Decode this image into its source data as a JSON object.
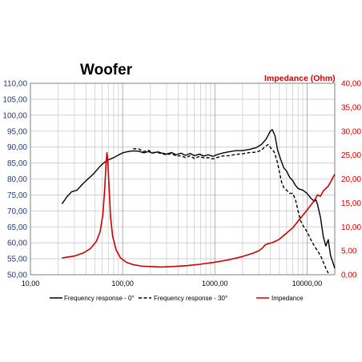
{
  "chart_data": {
    "type": "line",
    "title": "Woofer",
    "xlabel": "",
    "ylabel": "",
    "y2label": "Impedance (Ohm)",
    "xscale": "log",
    "xlim": [
      10,
      20000
    ],
    "ylim": [
      50,
      110
    ],
    "y2lim": [
      0,
      40
    ],
    "grid": true,
    "legend_placement": "bottom",
    "x_tick_values": [
      10,
      100,
      1000,
      10000
    ],
    "x_tick_labels": [
      "10,00",
      "100,00",
      "1000,00",
      "10000,00"
    ],
    "y_tick_values": [
      50,
      55,
      60,
      65,
      70,
      75,
      80,
      85,
      90,
      95,
      100,
      105,
      110
    ],
    "y_tick_labels": [
      "50,00",
      "55,00",
      "60,00",
      "65,00",
      "70,00",
      "75,00",
      "80,00",
      "85,00",
      "90,00",
      "95,00",
      "100,00",
      "105,00",
      "110,00"
    ],
    "y2_tick_values": [
      0,
      5,
      10,
      15,
      20,
      25,
      30,
      35,
      40
    ],
    "y2_tick_labels": [
      "0,00",
      "5,00",
      "10,00",
      "15,00",
      "20,00",
      "25,00",
      "30,00",
      "35,00",
      "40,00"
    ],
    "series": [
      {
        "name": "Frequency response - 0°",
        "axis": "left",
        "color": "#000000",
        "dash": "solid",
        "points": [
          [
            22,
            72.2
          ],
          [
            25,
            74.5
          ],
          [
            28,
            76
          ],
          [
            32,
            76.5
          ],
          [
            37,
            78.5
          ],
          [
            42,
            80
          ],
          [
            48,
            81.5
          ],
          [
            55,
            83.5
          ],
          [
            62,
            85
          ],
          [
            70,
            86
          ],
          [
            80,
            86.7
          ],
          [
            90,
            87.5
          ],
          [
            100,
            88.2
          ],
          [
            115,
            88.6
          ],
          [
            130,
            88.8
          ],
          [
            150,
            88.7
          ],
          [
            170,
            88.2
          ],
          [
            190,
            88.6
          ],
          [
            210,
            88.1
          ],
          [
            240,
            88.5
          ],
          [
            270,
            88.1
          ],
          [
            300,
            87.8
          ],
          [
            340,
            88.3
          ],
          [
            380,
            87.6
          ],
          [
            430,
            88.1
          ],
          [
            480,
            87.4
          ],
          [
            540,
            88
          ],
          [
            600,
            87.3
          ],
          [
            680,
            87.8
          ],
          [
            760,
            87.2
          ],
          [
            850,
            87.6
          ],
          [
            950,
            87.1
          ],
          [
            1050,
            87.6
          ],
          [
            1200,
            88.1
          ],
          [
            1400,
            88.5
          ],
          [
            1700,
            88.9
          ],
          [
            2000,
            88.9
          ],
          [
            2400,
            89.3
          ],
          [
            2800,
            89.8
          ],
          [
            3200,
            90.8
          ],
          [
            3600,
            92.5
          ],
          [
            4000,
            95
          ],
          [
            4200,
            95.5
          ],
          [
            4500,
            93.5
          ],
          [
            4800,
            89
          ],
          [
            5200,
            86
          ],
          [
            5600,
            83.5
          ],
          [
            6000,
            82.5
          ],
          [
            6500,
            80.5
          ],
          [
            7000,
            79.5
          ],
          [
            7500,
            78
          ],
          [
            8000,
            77
          ],
          [
            9000,
            76.5
          ],
          [
            10000,
            75.5
          ],
          [
            11000,
            74
          ],
          [
            12000,
            73
          ],
          [
            12500,
            73.5
          ],
          [
            13000,
            72
          ],
          [
            14000,
            68
          ],
          [
            15000,
            62
          ],
          [
            16000,
            59
          ],
          [
            17000,
            61
          ],
          [
            18000,
            56
          ],
          [
            19000,
            54
          ],
          [
            20000,
            52
          ]
        ]
      },
      {
        "name": "Frequency response - 30°",
        "axis": "left",
        "color": "#000000",
        "dash": "dashed",
        "points": [
          [
            130,
            89.5
          ],
          [
            150,
            89.4
          ],
          [
            170,
            88.6
          ],
          [
            190,
            89
          ],
          [
            210,
            88.3
          ],
          [
            240,
            88.3
          ],
          [
            270,
            87.9
          ],
          [
            300,
            87.6
          ],
          [
            340,
            88
          ],
          [
            380,
            87.2
          ],
          [
            430,
            87.3
          ],
          [
            480,
            86.7
          ],
          [
            540,
            87.3
          ],
          [
            600,
            86.4
          ],
          [
            680,
            87.1
          ],
          [
            760,
            86.6
          ],
          [
            850,
            86.7
          ],
          [
            950,
            86.3
          ],
          [
            1050,
            86.7
          ],
          [
            1200,
            87.2
          ],
          [
            1400,
            87.3
          ],
          [
            1700,
            87.7
          ],
          [
            2000,
            87.9
          ],
          [
            2400,
            88.3
          ],
          [
            2800,
            88.4
          ],
          [
            3200,
            89
          ],
          [
            3500,
            90.2
          ],
          [
            3800,
            90.8
          ],
          [
            4100,
            89.5
          ],
          [
            4400,
            88.5
          ],
          [
            4700,
            86
          ],
          [
            5000,
            82.5
          ],
          [
            5300,
            79
          ],
          [
            5600,
            77.3
          ],
          [
            6000,
            76.5
          ],
          [
            6500,
            75.5
          ],
          [
            7000,
            75.5
          ],
          [
            7500,
            73.5
          ],
          [
            8000,
            70
          ],
          [
            8500,
            67
          ],
          [
            9000,
            65.5
          ],
          [
            10000,
            63.5
          ],
          [
            11000,
            61
          ],
          [
            12000,
            59
          ],
          [
            13000,
            57.5
          ],
          [
            14000,
            56
          ],
          [
            15000,
            54
          ],
          [
            16000,
            52
          ],
          [
            17000,
            50.5
          ]
        ]
      },
      {
        "name": "Impedance",
        "axis": "right",
        "color": "#cc0000",
        "dash": "solid",
        "points": [
          [
            22,
            3.5
          ],
          [
            30,
            3.9
          ],
          [
            38,
            4.6
          ],
          [
            45,
            5.5
          ],
          [
            52,
            7
          ],
          [
            57,
            9
          ],
          [
            61,
            12.5
          ],
          [
            64,
            18
          ],
          [
            66,
            23
          ],
          [
            67.5,
            25.5
          ],
          [
            69,
            24
          ],
          [
            71,
            19
          ],
          [
            74,
            12
          ],
          [
            78,
            8
          ],
          [
            85,
            5.2
          ],
          [
            95,
            3.5
          ],
          [
            110,
            2.6
          ],
          [
            130,
            2.1
          ],
          [
            160,
            1.8
          ],
          [
            200,
            1.7
          ],
          [
            260,
            1.6
          ],
          [
            350,
            1.7
          ],
          [
            500,
            1.9
          ],
          [
            700,
            2.2
          ],
          [
            1000,
            2.6
          ],
          [
            1400,
            3.1
          ],
          [
            2000,
            3.8
          ],
          [
            2600,
            4.5
          ],
          [
            3000,
            5
          ],
          [
            3300,
            5.6
          ],
          [
            3500,
            6.2
          ],
          [
            3800,
            6.5
          ],
          [
            4200,
            6.7
          ],
          [
            5000,
            7.4
          ],
          [
            6000,
            8.7
          ],
          [
            7000,
            9.8
          ],
          [
            8000,
            11.2
          ],
          [
            10000,
            13.5
          ],
          [
            12000,
            15.5
          ],
          [
            13000,
            16.7
          ],
          [
            14000,
            16.4
          ],
          [
            15000,
            17.5
          ],
          [
            17000,
            18.5
          ],
          [
            20000,
            21
          ]
        ]
      }
    ]
  }
}
